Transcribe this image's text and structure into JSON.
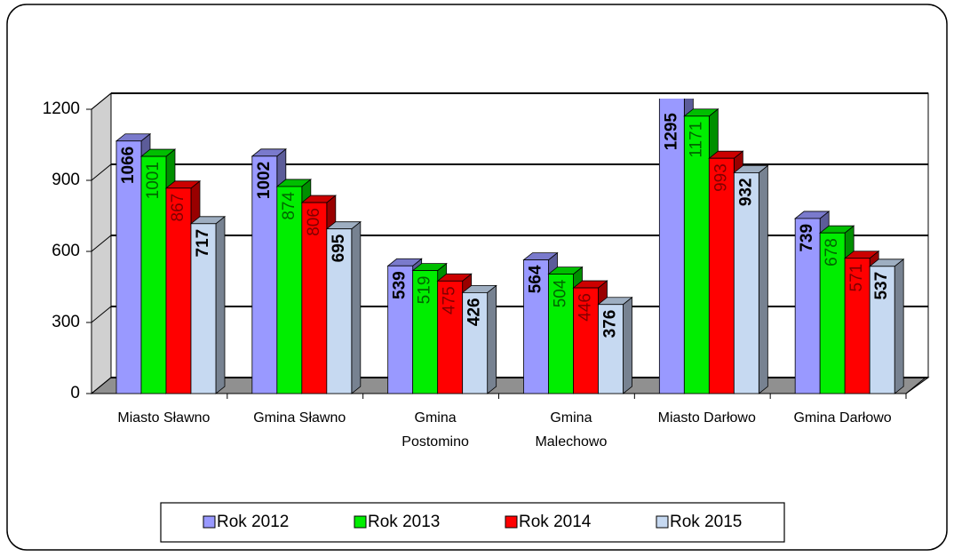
{
  "chart_data": {
    "type": "bar3d",
    "categories": [
      "Miasto Sławno",
      "Gmina Sławno",
      "Gmina Postomino",
      "Gmina Malechowo",
      "Miasto Darłowo",
      "Gmina Darłowo"
    ],
    "series": [
      {
        "name": "Rok 2012",
        "color": "#9999ff",
        "label_color": "#000000",
        "values": [
          1066,
          1002,
          539,
          564,
          1295,
          739
        ]
      },
      {
        "name": "Rok 2013",
        "color": "#00ee00",
        "label_color": "#006600",
        "values": [
          1001,
          874,
          519,
          504,
          1171,
          678
        ]
      },
      {
        "name": "Rok 2014",
        "color": "#ff0000",
        "label_color": "#800000",
        "values": [
          867,
          806,
          475,
          446,
          993,
          571
        ]
      },
      {
        "name": "Rok 2015",
        "color": "#c6d9f1",
        "label_color": "#000000",
        "values": [
          717,
          695,
          426,
          376,
          932,
          537
        ]
      }
    ],
    "ylim": [
      0,
      1200
    ],
    "yticks": [
      0,
      300,
      600,
      900,
      1200
    ],
    "grid": true,
    "legend": "bottom"
  }
}
